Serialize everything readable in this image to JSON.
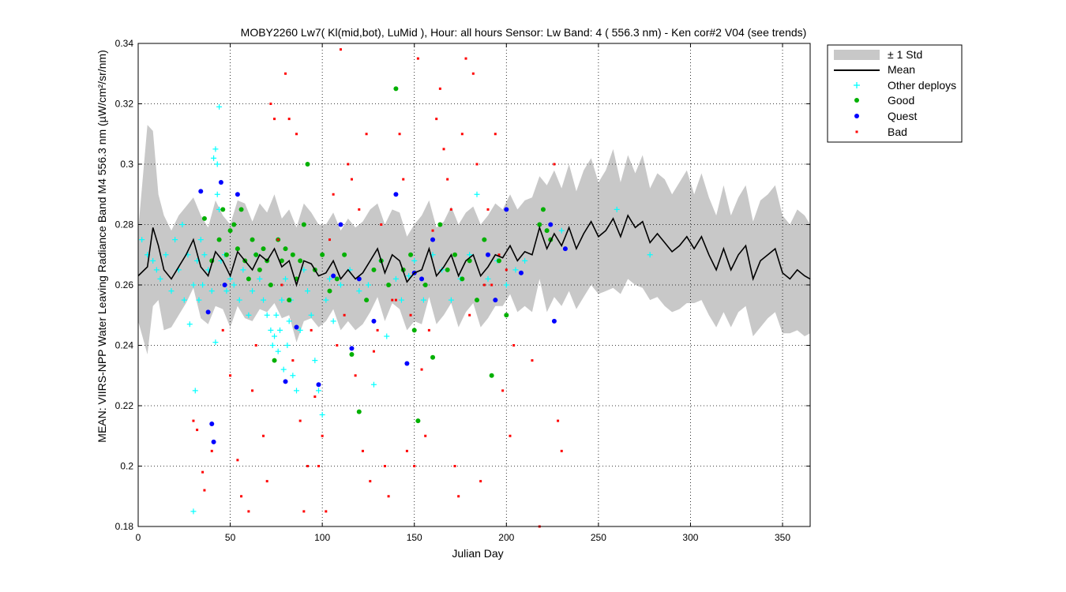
{
  "chart_data": {
    "type": "scatter",
    "title": "MOBY2260   Lw7( Kl(mid,bot), LuMid ),   Hour: all hours  Sensor: Lw Band: 4 ( 556.3 nm)  - Ken cor#2 V04 (see trends)",
    "xlabel": "Julian Day",
    "ylabel": "MEAN: VIIRS-NPP Water Leaving Radiance Band M4 556.3 nm (µW/cm²/sr/nm)",
    "xlim": [
      0,
      365
    ],
    "ylim": [
      0.18,
      0.34
    ],
    "xticks": [
      0,
      50,
      100,
      150,
      200,
      250,
      300,
      350
    ],
    "yticks": [
      0.18,
      0.2,
      0.22,
      0.24,
      0.26,
      0.28,
      0.3,
      0.32,
      0.34
    ],
    "grid": true,
    "legend_position": "outside-top-right",
    "legend": [
      "± 1 Std",
      "Mean",
      "Other deploys",
      "Good",
      "Quest",
      "Bad"
    ],
    "colors": {
      "std_band": "#c8c8c8",
      "mean": "#000000",
      "other": "#00ffff",
      "good": "#00b000",
      "quest": "#0000ff",
      "bad": "#ff0000"
    },
    "mean": {
      "x": [
        0,
        5,
        8,
        11,
        14,
        18,
        22,
        26,
        30,
        34,
        38,
        42,
        46,
        50,
        54,
        58,
        62,
        66,
        70,
        74,
        78,
        82,
        86,
        90,
        94,
        98,
        102,
        106,
        110,
        114,
        118,
        122,
        126,
        130,
        134,
        138,
        142,
        146,
        150,
        154,
        158,
        162,
        166,
        170,
        174,
        178,
        182,
        186,
        190,
        194,
        198,
        202,
        206,
        210,
        214,
        218,
        222,
        226,
        230,
        234,
        238,
        242,
        246,
        250,
        254,
        258,
        262,
        266,
        270,
        274,
        278,
        282,
        286,
        290,
        294,
        298,
        302,
        306,
        310,
        314,
        318,
        322,
        326,
        330,
        334,
        338,
        342,
        346,
        350,
        354,
        358,
        362,
        365
      ],
      "y": [
        0.263,
        0.266,
        0.279,
        0.273,
        0.265,
        0.262,
        0.266,
        0.27,
        0.275,
        0.266,
        0.263,
        0.271,
        0.268,
        0.263,
        0.271,
        0.268,
        0.265,
        0.27,
        0.268,
        0.272,
        0.266,
        0.268,
        0.26,
        0.268,
        0.267,
        0.263,
        0.264,
        0.268,
        0.262,
        0.265,
        0.262,
        0.264,
        0.268,
        0.272,
        0.264,
        0.27,
        0.268,
        0.261,
        0.264,
        0.265,
        0.272,
        0.263,
        0.266,
        0.27,
        0.263,
        0.268,
        0.27,
        0.263,
        0.266,
        0.27,
        0.269,
        0.273,
        0.268,
        0.271,
        0.27,
        0.279,
        0.272,
        0.277,
        0.273,
        0.279,
        0.272,
        0.277,
        0.281,
        0.276,
        0.278,
        0.282,
        0.276,
        0.283,
        0.279,
        0.281,
        0.274,
        0.277,
        0.274,
        0.271,
        0.273,
        0.276,
        0.272,
        0.276,
        0.27,
        0.265,
        0.272,
        0.265,
        0.27,
        0.273,
        0.262,
        0.268,
        0.27,
        0.272,
        0.264,
        0.262,
        0.265,
        0.263,
        0.262
      ]
    },
    "std_band": {
      "x": [
        0,
        5,
        8,
        11,
        14,
        18,
        22,
        26,
        30,
        34,
        38,
        42,
        46,
        50,
        54,
        58,
        62,
        66,
        70,
        74,
        78,
        82,
        86,
        90,
        94,
        98,
        102,
        106,
        110,
        114,
        118,
        122,
        126,
        130,
        134,
        138,
        142,
        146,
        150,
        154,
        158,
        162,
        166,
        170,
        174,
        178,
        182,
        186,
        190,
        194,
        198,
        202,
        206,
        210,
        214,
        218,
        222,
        226,
        230,
        234,
        238,
        242,
        246,
        250,
        254,
        258,
        262,
        266,
        270,
        274,
        278,
        282,
        286,
        290,
        294,
        298,
        302,
        306,
        310,
        314,
        318,
        322,
        326,
        330,
        334,
        338,
        342,
        346,
        350,
        354,
        358,
        362,
        365
      ],
      "upper": [
        0.278,
        0.313,
        0.311,
        0.29,
        0.283,
        0.278,
        0.283,
        0.286,
        0.289,
        0.283,
        0.279,
        0.288,
        0.283,
        0.28,
        0.288,
        0.287,
        0.281,
        0.287,
        0.284,
        0.29,
        0.282,
        0.285,
        0.279,
        0.287,
        0.284,
        0.28,
        0.28,
        0.284,
        0.278,
        0.282,
        0.279,
        0.281,
        0.285,
        0.287,
        0.28,
        0.285,
        0.284,
        0.276,
        0.28,
        0.283,
        0.288,
        0.279,
        0.281,
        0.286,
        0.28,
        0.284,
        0.286,
        0.28,
        0.283,
        0.287,
        0.285,
        0.29,
        0.285,
        0.288,
        0.289,
        0.296,
        0.293,
        0.298,
        0.292,
        0.3,
        0.291,
        0.298,
        0.302,
        0.294,
        0.298,
        0.305,
        0.294,
        0.303,
        0.297,
        0.303,
        0.292,
        0.297,
        0.295,
        0.29,
        0.294,
        0.298,
        0.29,
        0.297,
        0.289,
        0.283,
        0.293,
        0.283,
        0.289,
        0.293,
        0.281,
        0.288,
        0.29,
        0.293,
        0.283,
        0.28,
        0.285,
        0.283,
        0.28
      ],
      "lower": [
        0.248,
        0.237,
        0.253,
        0.255,
        0.245,
        0.246,
        0.25,
        0.254,
        0.259,
        0.249,
        0.247,
        0.253,
        0.252,
        0.246,
        0.253,
        0.249,
        0.248,
        0.252,
        0.251,
        0.254,
        0.249,
        0.25,
        0.241,
        0.248,
        0.249,
        0.246,
        0.248,
        0.252,
        0.245,
        0.248,
        0.245,
        0.247,
        0.251,
        0.256,
        0.248,
        0.254,
        0.252,
        0.245,
        0.248,
        0.247,
        0.256,
        0.247,
        0.25,
        0.254,
        0.246,
        0.251,
        0.254,
        0.246,
        0.249,
        0.253,
        0.253,
        0.257,
        0.251,
        0.253,
        0.251,
        0.262,
        0.251,
        0.256,
        0.253,
        0.258,
        0.252,
        0.256,
        0.26,
        0.257,
        0.258,
        0.259,
        0.257,
        0.262,
        0.26,
        0.259,
        0.255,
        0.256,
        0.253,
        0.251,
        0.252,
        0.254,
        0.254,
        0.255,
        0.25,
        0.246,
        0.251,
        0.246,
        0.251,
        0.253,
        0.243,
        0.246,
        0.249,
        0.251,
        0.244,
        0.244,
        0.245,
        0.243,
        0.244
      ]
    },
    "series": [
      {
        "name": "Other deploys",
        "x": [
          2,
          5,
          8,
          10,
          12,
          15,
          18,
          20,
          22,
          24,
          25,
          27,
          28,
          30,
          32,
          33,
          34,
          35,
          36,
          38,
          40,
          41,
          42,
          43,
          43,
          44,
          45,
          47,
          48,
          50,
          52,
          55,
          57,
          60,
          62,
          64,
          66,
          68,
          70,
          72,
          73,
          74,
          75,
          76,
          77,
          78,
          79,
          80,
          81,
          82,
          83,
          84,
          86,
          88,
          90,
          92,
          94,
          96,
          98,
          100,
          102,
          104,
          106,
          110,
          115,
          120,
          125,
          128,
          132,
          135,
          140,
          143,
          147,
          150,
          155,
          160,
          165,
          170,
          175,
          180,
          184,
          190,
          195,
          200,
          205,
          210,
          230,
          260,
          278,
          30,
          42,
          44,
          31
        ],
        "y": [
          0.275,
          0.27,
          0.268,
          0.265,
          0.262,
          0.27,
          0.258,
          0.275,
          0.265,
          0.28,
          0.255,
          0.27,
          0.247,
          0.26,
          0.268,
          0.255,
          0.275,
          0.26,
          0.27,
          0.265,
          0.258,
          0.302,
          0.305,
          0.29,
          0.3,
          0.285,
          0.268,
          0.27,
          0.258,
          0.262,
          0.26,
          0.255,
          0.265,
          0.25,
          0.258,
          0.27,
          0.262,
          0.255,
          0.25,
          0.245,
          0.24,
          0.243,
          0.25,
          0.238,
          0.245,
          0.255,
          0.232,
          0.262,
          0.24,
          0.248,
          0.255,
          0.23,
          0.225,
          0.245,
          0.265,
          0.258,
          0.25,
          0.235,
          0.225,
          0.217,
          0.255,
          0.262,
          0.248,
          0.26,
          0.265,
          0.258,
          0.26,
          0.227,
          0.268,
          0.243,
          0.262,
          0.255,
          0.263,
          0.268,
          0.255,
          0.27,
          0.265,
          0.255,
          0.262,
          0.27,
          0.29,
          0.262,
          0.268,
          0.26,
          0.265,
          0.268,
          0.278,
          0.285,
          0.27,
          0.185,
          0.241,
          0.319,
          0.225
        ]
      },
      {
        "name": "Good",
        "x": [
          36,
          40,
          44,
          46,
          48,
          50,
          52,
          54,
          56,
          58,
          60,
          62,
          64,
          66,
          68,
          70,
          72,
          74,
          76,
          78,
          80,
          82,
          84,
          86,
          88,
          90,
          92,
          96,
          100,
          104,
          108,
          112,
          116,
          120,
          124,
          128,
          132,
          136,
          140,
          144,
          148,
          150,
          152,
          156,
          160,
          164,
          168,
          172,
          176,
          180,
          184,
          188,
          192,
          196,
          200,
          218,
          220,
          222,
          224
        ],
        "y": [
          0.282,
          0.268,
          0.275,
          0.285,
          0.27,
          0.278,
          0.28,
          0.272,
          0.285,
          0.268,
          0.262,
          0.275,
          0.27,
          0.265,
          0.272,
          0.268,
          0.26,
          0.235,
          0.275,
          0.268,
          0.272,
          0.255,
          0.27,
          0.262,
          0.268,
          0.28,
          0.3,
          0.265,
          0.27,
          0.258,
          0.262,
          0.27,
          0.237,
          0.218,
          0.255,
          0.265,
          0.268,
          0.26,
          0.325,
          0.265,
          0.27,
          0.245,
          0.215,
          0.26,
          0.236,
          0.28,
          0.265,
          0.27,
          0.262,
          0.268,
          0.255,
          0.275,
          0.23,
          0.268,
          0.25,
          0.28,
          0.285,
          0.278,
          0.275
        ]
      },
      {
        "name": "Quest",
        "x": [
          34,
          40,
          41,
          45,
          47,
          54,
          80,
          86,
          98,
          106,
          110,
          116,
          120,
          128,
          140,
          146,
          150,
          154,
          160,
          190,
          194,
          200,
          208,
          224,
          226,
          232,
          38
        ],
        "y": [
          0.291,
          0.214,
          0.208,
          0.294,
          0.26,
          0.29,
          0.228,
          0.246,
          0.227,
          0.263,
          0.28,
          0.239,
          0.262,
          0.248,
          0.29,
          0.234,
          0.264,
          0.262,
          0.275,
          0.27,
          0.255,
          0.285,
          0.264,
          0.28,
          0.248,
          0.272,
          0.251
        ]
      },
      {
        "name": "Bad",
        "x": [
          30,
          32,
          35,
          36,
          40,
          46,
          50,
          54,
          56,
          60,
          62,
          64,
          68,
          70,
          72,
          74,
          76,
          78,
          80,
          82,
          84,
          86,
          88,
          90,
          92,
          94,
          96,
          98,
          100,
          102,
          104,
          106,
          108,
          110,
          112,
          114,
          116,
          118,
          120,
          122,
          124,
          126,
          128,
          130,
          132,
          134,
          136,
          138,
          140,
          142,
          144,
          146,
          148,
          150,
          152,
          154,
          156,
          158,
          160,
          162,
          164,
          166,
          168,
          170,
          172,
          174,
          176,
          178,
          180,
          182,
          184,
          186,
          188,
          190,
          192,
          194,
          196,
          198,
          200,
          202,
          204,
          226,
          228,
          230,
          214,
          218
        ],
        "y": [
          0.215,
          0.212,
          0.198,
          0.192,
          0.205,
          0.245,
          0.23,
          0.202,
          0.19,
          0.185,
          0.225,
          0.24,
          0.21,
          0.195,
          0.32,
          0.315,
          0.275,
          0.26,
          0.33,
          0.315,
          0.235,
          0.31,
          0.215,
          0.185,
          0.2,
          0.245,
          0.223,
          0.2,
          0.21,
          0.185,
          0.275,
          0.29,
          0.24,
          0.338,
          0.25,
          0.3,
          0.295,
          0.23,
          0.285,
          0.205,
          0.31,
          0.195,
          0.238,
          0.245,
          0.28,
          0.2,
          0.19,
          0.255,
          0.255,
          0.31,
          0.295,
          0.205,
          0.25,
          0.2,
          0.335,
          0.232,
          0.21,
          0.245,
          0.278,
          0.315,
          0.325,
          0.305,
          0.295,
          0.285,
          0.2,
          0.19,
          0.31,
          0.335,
          0.25,
          0.33,
          0.3,
          0.195,
          0.26,
          0.285,
          0.26,
          0.31,
          0.27,
          0.225,
          0.265,
          0.21,
          0.24,
          0.3,
          0.215,
          0.205,
          0.235,
          0.18
        ]
      }
    ]
  }
}
